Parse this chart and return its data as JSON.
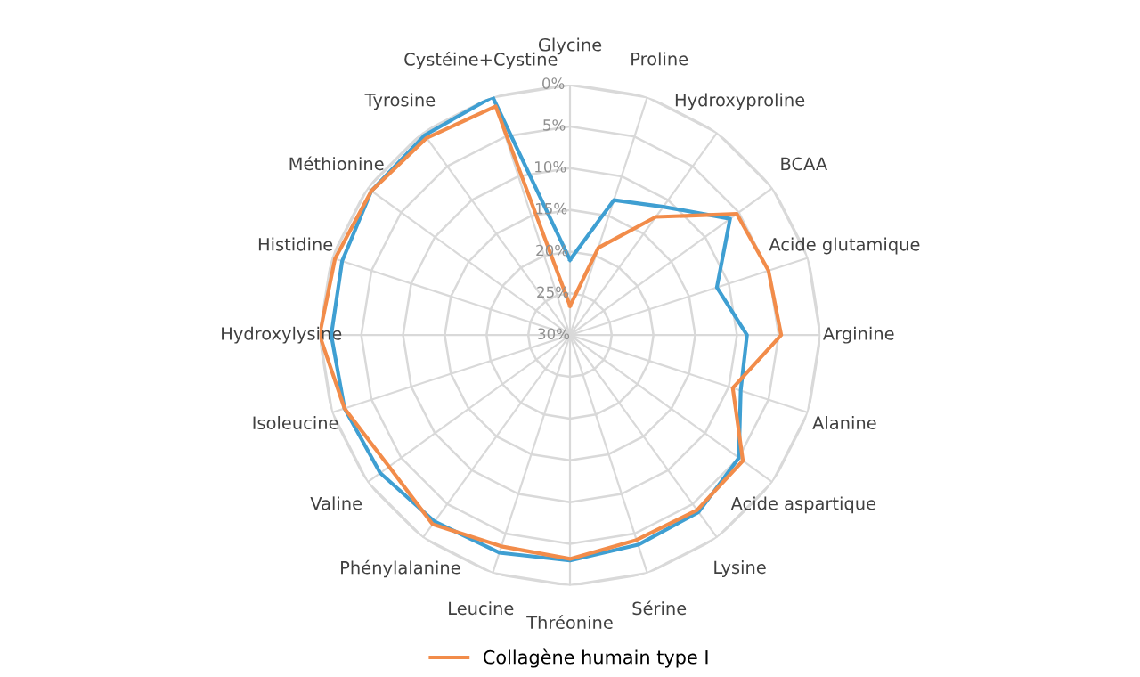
{
  "chart_data": {
    "type": "radar",
    "categories": [
      "Glycine",
      "Proline",
      "Hydroxyproline",
      "BCAA",
      "Acide glutamique",
      "Arginine",
      "Alanine",
      "Acide aspartique",
      "Lysine",
      "Sérine",
      "Thréonine",
      "Leucine",
      "Phénylalanine",
      "Valine",
      "Isoleucine",
      "Hydroxylysine",
      "Histidine",
      "Méthionine",
      "Tyrosine",
      "Cystéine+Cystine"
    ],
    "series": [
      {
        "color": "#3f9fd2",
        "values": [
          21,
          13,
          11,
          6.3,
          11.5,
          8.8,
          8.5,
          5.0,
          3.8,
          3.6,
          3.0,
          2.6,
          2.4,
          1.9,
          1.6,
          1.4,
          1.3,
          0.6,
          0.4,
          0
        ]
      },
      {
        "name": "Collagène humain type I",
        "color": "#f28c4a",
        "values": [
          26.5,
          19,
          12.5,
          5.3,
          5,
          4.7,
          9.5,
          4.4,
          4.1,
          4.2,
          3.2,
          3.4,
          2.0,
          3.2,
          1.6,
          0,
          0.4,
          0.6,
          0.8,
          1.2
        ]
      }
    ],
    "ylim": [
      30,
      0
    ],
    "yticks": [
      {
        "value": 0,
        "label": "0%"
      },
      {
        "value": 5,
        "label": "5%"
      },
      {
        "value": 10,
        "label": "10%"
      },
      {
        "value": 15,
        "label": "15%"
      },
      {
        "value": 20,
        "label": "20%"
      },
      {
        "value": 25,
        "label": "25%"
      },
      {
        "value": 30,
        "label": "30%"
      }
    ],
    "grid": true,
    "legend": "bottom",
    "marker": "none",
    "line_style": "solid"
  }
}
